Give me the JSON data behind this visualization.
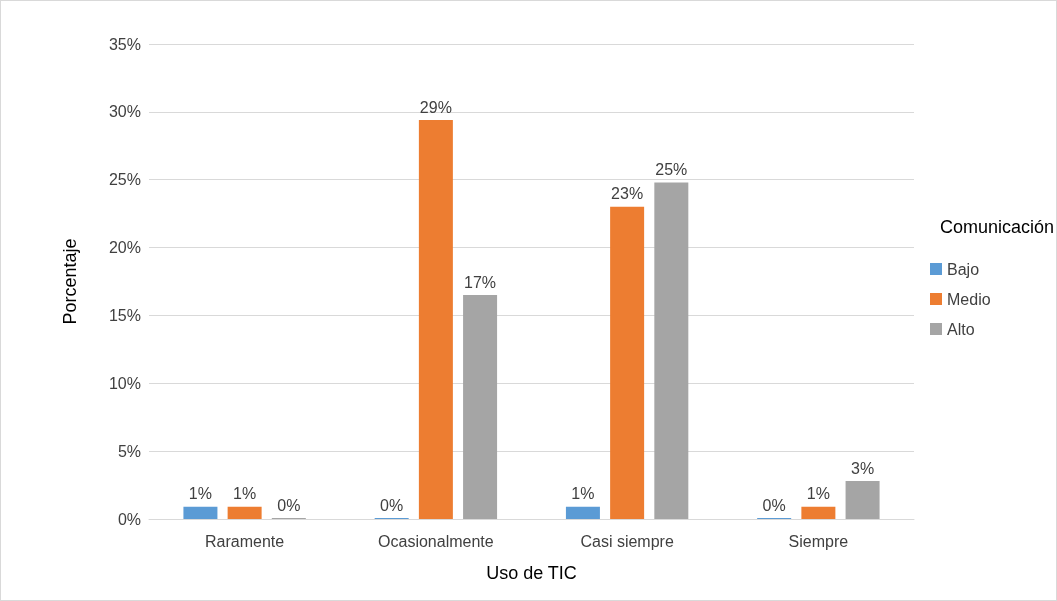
{
  "chart_data": {
    "type": "bar",
    "xlabel": "Uso de TIC",
    "ylabel": "Porcentaje",
    "legend_title": "Comunicación",
    "categories": [
      "Raramente",
      "Ocasionalmente",
      "Casi siempre",
      "Siempre"
    ],
    "series": [
      {
        "name": "Bajo",
        "color": "#5b9bd5",
        "values": [
          0.9,
          0,
          0.9,
          0
        ],
        "value_labels": [
          "1%",
          "0%",
          "1%",
          "0%"
        ]
      },
      {
        "name": "Medio",
        "color": "#ed7d31",
        "values": [
          0.9,
          29.4,
          23,
          0.9
        ],
        "value_labels": [
          "1%",
          "29%",
          "23%",
          "1%"
        ]
      },
      {
        "name": "Alto",
        "color": "#a5a5a5",
        "values": [
          0,
          16.5,
          24.8,
          2.8
        ],
        "value_labels": [
          "0%",
          "17%",
          "25%",
          "3%"
        ]
      }
    ],
    "ylim": [
      0,
      35
    ],
    "yticks": [
      {
        "value": 0,
        "label": "0%"
      },
      {
        "value": 5,
        "label": "5%"
      },
      {
        "value": 10,
        "label": "10%"
      },
      {
        "value": 15,
        "label": "15%"
      },
      {
        "value": 20,
        "label": "20%"
      },
      {
        "value": 25,
        "label": "25%"
      },
      {
        "value": 30,
        "label": "30%"
      },
      {
        "value": 35,
        "label": "35%"
      }
    ],
    "grid": "y",
    "legend": "right"
  }
}
